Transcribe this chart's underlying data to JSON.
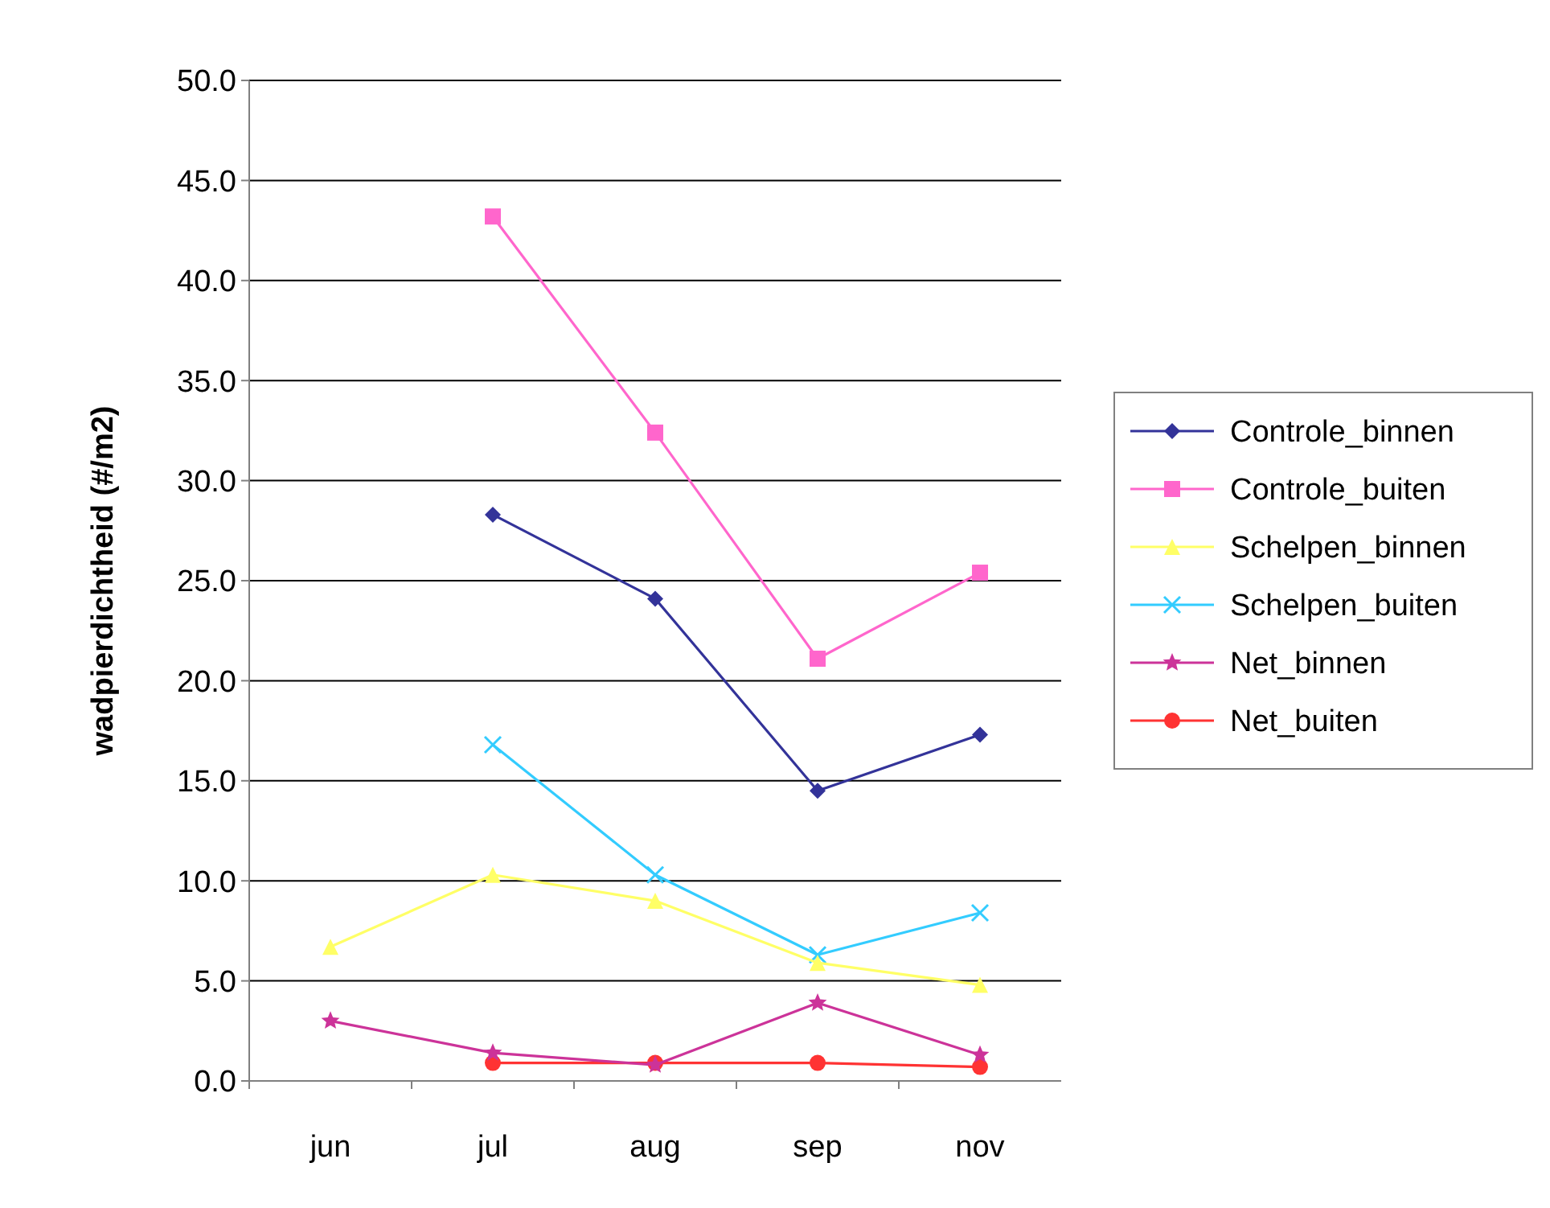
{
  "chart_data": {
    "type": "line",
    "ylabel": "wadpierdichtheid (#/m2)",
    "categories": [
      "jun",
      "jul",
      "aug",
      "sep",
      "nov"
    ],
    "ylim": [
      0,
      50
    ],
    "yticks": [
      {
        "value": 0,
        "label": "0.0"
      },
      {
        "value": 5,
        "label": "5.0"
      },
      {
        "value": 10,
        "label": "10.0"
      },
      {
        "value": 15,
        "label": "15.0"
      },
      {
        "value": 20,
        "label": "20.0"
      },
      {
        "value": 25,
        "label": "25.0"
      },
      {
        "value": 30,
        "label": "30.0"
      },
      {
        "value": 35,
        "label": "35.0"
      },
      {
        "value": 40,
        "label": "40.0"
      },
      {
        "value": 45,
        "label": "45.0"
      },
      {
        "value": 50,
        "label": "50.0"
      }
    ],
    "grid": "y",
    "legend": "right",
    "series": [
      {
        "name": "Controle_binnen",
        "color": "#333399",
        "marker": "diamond",
        "values": [
          null,
          28.3,
          24.1,
          14.5,
          17.3
        ]
      },
      {
        "name": "Controle_buiten",
        "color": "#ff66cc",
        "marker": "square",
        "values": [
          null,
          43.2,
          32.4,
          21.1,
          25.4
        ]
      },
      {
        "name": "Schelpen_binnen",
        "color": "#ffff66",
        "marker": "triangle",
        "values": [
          6.7,
          10.3,
          9.0,
          5.9,
          4.8
        ]
      },
      {
        "name": "Schelpen_buiten",
        "color": "#33ccff",
        "marker": "cross",
        "values": [
          null,
          16.8,
          10.3,
          6.3,
          8.4
        ]
      },
      {
        "name": "Net_binnen",
        "color": "#cc3399",
        "marker": "star",
        "values": [
          3.0,
          1.4,
          0.8,
          3.9,
          1.3
        ]
      },
      {
        "name": "Net_buiten",
        "color": "#ff3333",
        "marker": "circle",
        "values": [
          null,
          0.9,
          0.9,
          0.9,
          0.7
        ]
      }
    ]
  }
}
